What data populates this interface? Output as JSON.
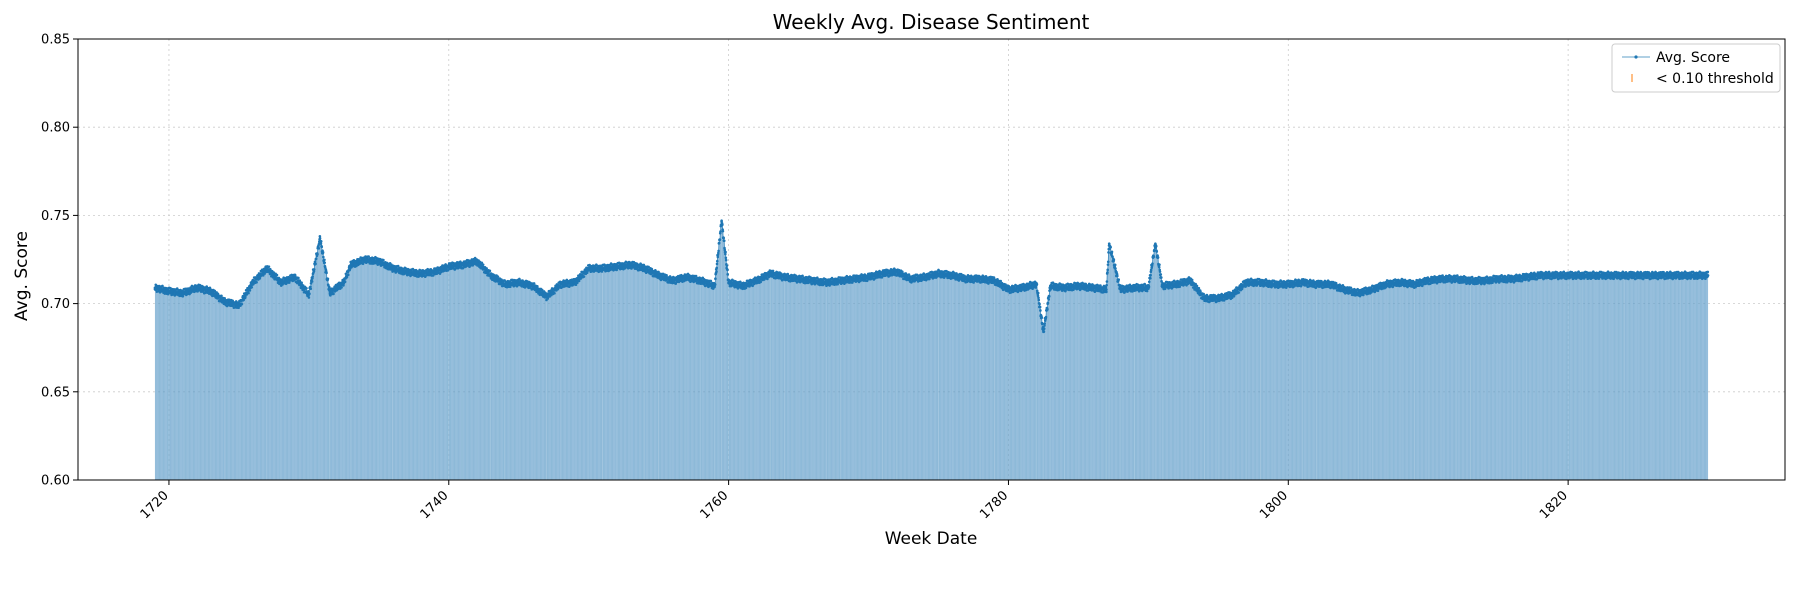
{
  "chart_data": {
    "type": "area",
    "title": "Weekly Avg. Disease Sentiment",
    "xlabel": "Week Date",
    "ylabel": "Avg. Score",
    "xlim": [
      1713.5,
      1835.5
    ],
    "ylim": [
      0.6,
      0.85
    ],
    "x_ticks": [
      1720,
      1740,
      1760,
      1780,
      1800,
      1820
    ],
    "x_tick_labels": [
      "1720",
      "1740",
      "1760",
      "1780",
      "1800",
      "1820"
    ],
    "y_ticks": [
      0.6,
      0.65,
      0.7,
      0.75,
      0.8,
      0.85
    ],
    "y_tick_labels": [
      "0.60",
      "0.65",
      "0.70",
      "0.75",
      "0.80",
      "0.85"
    ],
    "grid": true,
    "legend_position": "top-right",
    "x_start": 1719.0,
    "x_end": 1830.0,
    "series": [
      {
        "name": "Avg. Score",
        "color": "#1f77b4",
        "control_points": [
          [
            1719.0,
            0.709
          ],
          [
            1720.0,
            0.707
          ],
          [
            1721.0,
            0.706
          ],
          [
            1722.0,
            0.709
          ],
          [
            1723.0,
            0.707
          ],
          [
            1724.0,
            0.701
          ],
          [
            1725.0,
            0.699
          ],
          [
            1726.0,
            0.712
          ],
          [
            1727.0,
            0.72
          ],
          [
            1728.0,
            0.712
          ],
          [
            1729.0,
            0.715
          ],
          [
            1730.0,
            0.705
          ],
          [
            1730.8,
            0.737
          ],
          [
            1731.5,
            0.706
          ],
          [
            1732.5,
            0.712
          ],
          [
            1733.0,
            0.722
          ],
          [
            1734.0,
            0.725
          ],
          [
            1735.0,
            0.724
          ],
          [
            1736.0,
            0.72
          ],
          [
            1737.0,
            0.718
          ],
          [
            1738.0,
            0.717
          ],
          [
            1739.0,
            0.718
          ],
          [
            1740.0,
            0.721
          ],
          [
            1741.0,
            0.722
          ],
          [
            1742.0,
            0.724
          ],
          [
            1743.0,
            0.716
          ],
          [
            1744.0,
            0.711
          ],
          [
            1745.0,
            0.712
          ],
          [
            1746.0,
            0.71
          ],
          [
            1747.0,
            0.704
          ],
          [
            1748.0,
            0.711
          ],
          [
            1749.0,
            0.712
          ],
          [
            1750.0,
            0.72
          ],
          [
            1751.0,
            0.72
          ],
          [
            1752.0,
            0.721
          ],
          [
            1753.0,
            0.722
          ],
          [
            1754.0,
            0.72
          ],
          [
            1755.0,
            0.716
          ],
          [
            1756.0,
            0.713
          ],
          [
            1757.0,
            0.715
          ],
          [
            1758.0,
            0.713
          ],
          [
            1759.0,
            0.71
          ],
          [
            1759.5,
            0.747
          ],
          [
            1760.0,
            0.712
          ],
          [
            1761.0,
            0.71
          ],
          [
            1762.0,
            0.713
          ],
          [
            1763.0,
            0.717
          ],
          [
            1764.0,
            0.715
          ],
          [
            1765.0,
            0.714
          ],
          [
            1766.0,
            0.713
          ],
          [
            1767.0,
            0.712
          ],
          [
            1768.0,
            0.713
          ],
          [
            1769.0,
            0.714
          ],
          [
            1770.0,
            0.715
          ],
          [
            1771.0,
            0.717
          ],
          [
            1772.0,
            0.718
          ],
          [
            1773.0,
            0.714
          ],
          [
            1774.0,
            0.715
          ],
          [
            1775.0,
            0.717
          ],
          [
            1776.0,
            0.716
          ],
          [
            1777.0,
            0.714
          ],
          [
            1778.0,
            0.714
          ],
          [
            1779.0,
            0.713
          ],
          [
            1780.0,
            0.708
          ],
          [
            1781.0,
            0.709
          ],
          [
            1782.0,
            0.711
          ],
          [
            1782.5,
            0.684
          ],
          [
            1783.0,
            0.71
          ],
          [
            1784.0,
            0.709
          ],
          [
            1785.0,
            0.71
          ],
          [
            1786.0,
            0.709
          ],
          [
            1787.0,
            0.708
          ],
          [
            1787.2,
            0.734
          ],
          [
            1788.0,
            0.708
          ],
          [
            1789.0,
            0.709
          ],
          [
            1790.0,
            0.709
          ],
          [
            1790.5,
            0.734
          ],
          [
            1791.0,
            0.71
          ],
          [
            1792.0,
            0.711
          ],
          [
            1793.0,
            0.713
          ],
          [
            1794.0,
            0.703
          ],
          [
            1795.0,
            0.703
          ],
          [
            1796.0,
            0.705
          ],
          [
            1797.0,
            0.712
          ],
          [
            1798.0,
            0.712
          ],
          [
            1799.0,
            0.711
          ],
          [
            1800.0,
            0.711
          ],
          [
            1801.0,
            0.712
          ],
          [
            1802.0,
            0.711
          ],
          [
            1803.0,
            0.711
          ],
          [
            1804.0,
            0.708
          ],
          [
            1805.0,
            0.706
          ],
          [
            1806.0,
            0.708
          ],
          [
            1807.0,
            0.711
          ],
          [
            1808.0,
            0.712
          ],
          [
            1809.0,
            0.711
          ],
          [
            1810.0,
            0.713
          ],
          [
            1811.0,
            0.714
          ],
          [
            1812.0,
            0.714
          ],
          [
            1813.0,
            0.713
          ],
          [
            1814.0,
            0.713
          ],
          [
            1815.0,
            0.714
          ],
          [
            1816.0,
            0.714
          ],
          [
            1817.0,
            0.715
          ],
          [
            1818.0,
            0.716
          ],
          [
            1819.0,
            0.716
          ],
          [
            1820.0,
            0.716
          ],
          [
            1821.0,
            0.716
          ],
          [
            1822.0,
            0.716
          ],
          [
            1823.0,
            0.716
          ],
          [
            1824.0,
            0.716
          ],
          [
            1825.0,
            0.716
          ],
          [
            1826.0,
            0.716
          ],
          [
            1827.0,
            0.716
          ],
          [
            1828.0,
            0.716
          ],
          [
            1829.0,
            0.716
          ],
          [
            1830.0,
            0.716
          ]
        ]
      },
      {
        "name": "< 0.10 threshold",
        "color": "#ff7f0e",
        "values": []
      }
    ]
  }
}
